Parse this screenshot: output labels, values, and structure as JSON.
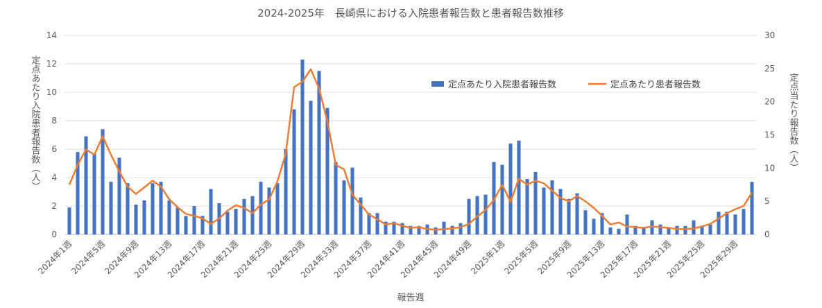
{
  "chart_data": {
    "type": "bar",
    "title": "2024-2025年　長崎県における入院患者報告数と患者報告数推移",
    "xlabel": "報告週",
    "ylabel_left": "定点あたり入院患者報告数（人）",
    "ylabel_right": "定点当たり報告数（人）",
    "ylim_left": [
      0,
      14
    ],
    "ylim_right": [
      0,
      30
    ],
    "yticks_left": [
      "0",
      "2",
      "4",
      "6",
      "8",
      "10",
      "12",
      "14"
    ],
    "yticks_right": [
      "0",
      "5",
      "10",
      "15",
      "20",
      "25",
      "30"
    ],
    "x_tick_labels": [
      "2024年1週",
      "2024年5週",
      "2024年9週",
      "2024年13週",
      "2024年17週",
      "2024年21週",
      "2024年25週",
      "2024年29週",
      "2024年33週",
      "2024年37週",
      "2024年41週",
      "2024年45週",
      "2024年49週",
      "2025年1週",
      "2025年5週",
      "2025年9週",
      "2025年13週",
      "2025年17週",
      "2025年21週",
      "2025年25週",
      "2025年29週"
    ],
    "grid": true,
    "legend_position": "top-right",
    "bar_color": "#4472C4",
    "line_color": "#ED7D31",
    "series": [
      {
        "name": "定点あたり入院患者報告数",
        "axis": "left",
        "type": "bar",
        "values": [
          1.9,
          5.8,
          6.9,
          5.7,
          7.4,
          3.7,
          5.4,
          3.6,
          2.1,
          2.4,
          3.6,
          3.7,
          2.4,
          1.9,
          1.3,
          2.0,
          1.3,
          3.2,
          2.2,
          1.6,
          1.8,
          2.5,
          2.7,
          3.7,
          3.3,
          3.6,
          6.0,
          8.8,
          12.3,
          9.4,
          11.5,
          8.9,
          5.1,
          3.8,
          4.7,
          2.6,
          1.5,
          1.5,
          0.9,
          0.9,
          0.8,
          0.6,
          0.6,
          0.7,
          0.5,
          0.9,
          0.6,
          0.8,
          2.5,
          2.7,
          2.8,
          5.1,
          4.9,
          6.4,
          6.6,
          3.9,
          4.4,
          3.3,
          3.8,
          3.2,
          2.5,
          2.9,
          1.7,
          1.1,
          1.5,
          0.5,
          0.4,
          1.4,
          0.6,
          0.5,
          1.0,
          0.7,
          0.5,
          0.6,
          0.6,
          1.0,
          0.6,
          0.7,
          1.6,
          1.6,
          1.4,
          1.8,
          3.7
        ]
      },
      {
        "name": "定点あたり患者報告数",
        "axis": "right",
        "type": "line",
        "values": [
          7.5,
          10.5,
          12.8,
          12.0,
          14.8,
          12.0,
          9.5,
          7.2,
          6.1,
          7.1,
          8.1,
          7.2,
          5.3,
          4.1,
          3.1,
          2.8,
          2.4,
          1.6,
          2.4,
          3.6,
          4.4,
          4.0,
          3.2,
          4.5,
          5.3,
          8.0,
          12.2,
          22.2,
          23.0,
          24.9,
          22.0,
          17.0,
          10.5,
          9.8,
          6.0,
          4.5,
          3.0,
          2.3,
          1.5,
          1.7,
          1.3,
          1.0,
          1.1,
          0.8,
          0.7,
          0.8,
          0.9,
          1.1,
          1.6,
          2.7,
          3.7,
          5.2,
          7.5,
          4.9,
          8.4,
          7.5,
          8.1,
          7.7,
          6.6,
          5.5,
          5.0,
          5.8,
          5.0,
          4.0,
          2.8,
          1.5,
          1.8,
          1.2,
          1.1,
          1.0,
          1.2,
          1.1,
          1.0,
          0.8,
          0.8,
          0.9,
          1.2,
          1.6,
          2.4,
          3.2,
          3.8,
          4.3,
          6.3
        ]
      }
    ]
  }
}
